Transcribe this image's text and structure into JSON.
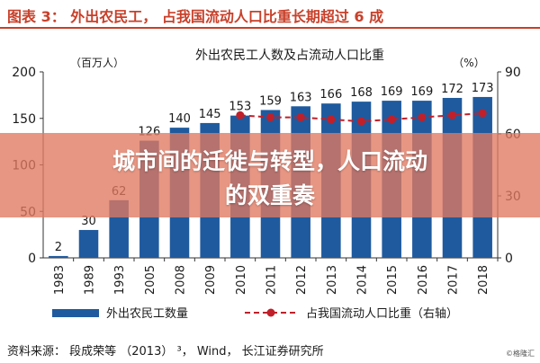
{
  "figure_header": "图表 3： 外出农民工， 占我国流动人口比重长期超过 6 成",
  "banner": {
    "line1": "城市间的迁徙与转型，人口流动",
    "line2": "的双重奏"
  },
  "source_note": "资料来源： 段成荣等 （2013） ³， Wind， 长江证券研究所",
  "watermark": "©格隆汇",
  "colors": {
    "bar": "#1f5a9e",
    "line": "#c0202a",
    "header": "#c8402a",
    "grid": "#b0b0b0"
  },
  "chart_data": {
    "type": "bar",
    "title": "外出农民工人数及占流动人口比重",
    "ylabel_left": "（百万人）",
    "ylabel_right": "（%）",
    "categories": [
      "1983",
      "1989",
      "1993",
      "2005",
      "2008",
      "2009",
      "2010",
      "2011",
      "2012",
      "2013",
      "2014",
      "2015",
      "2016",
      "2017",
      "2018"
    ],
    "series": [
      {
        "name": "外出农民工数量",
        "type": "bar",
        "axis": "left",
        "values": [
          2,
          30,
          62,
          126,
          140,
          145,
          153,
          159,
          163,
          166,
          168,
          169,
          169,
          172,
          173
        ]
      },
      {
        "name": "占我国流动人口比重（右轴）",
        "type": "line",
        "axis": "right",
        "values": [
          null,
          null,
          null,
          null,
          null,
          null,
          69,
          68,
          68,
          67,
          66,
          67,
          68,
          69,
          70
        ]
      }
    ],
    "ylim_left": [
      0,
      200
    ],
    "yticks_left": [
      "0",
      "50",
      "100",
      "150",
      "200"
    ],
    "ylim_right": [
      0,
      90
    ],
    "yticks_right": [
      "0",
      "30",
      "60",
      "90"
    ],
    "grid": false,
    "legend": "bottom"
  }
}
